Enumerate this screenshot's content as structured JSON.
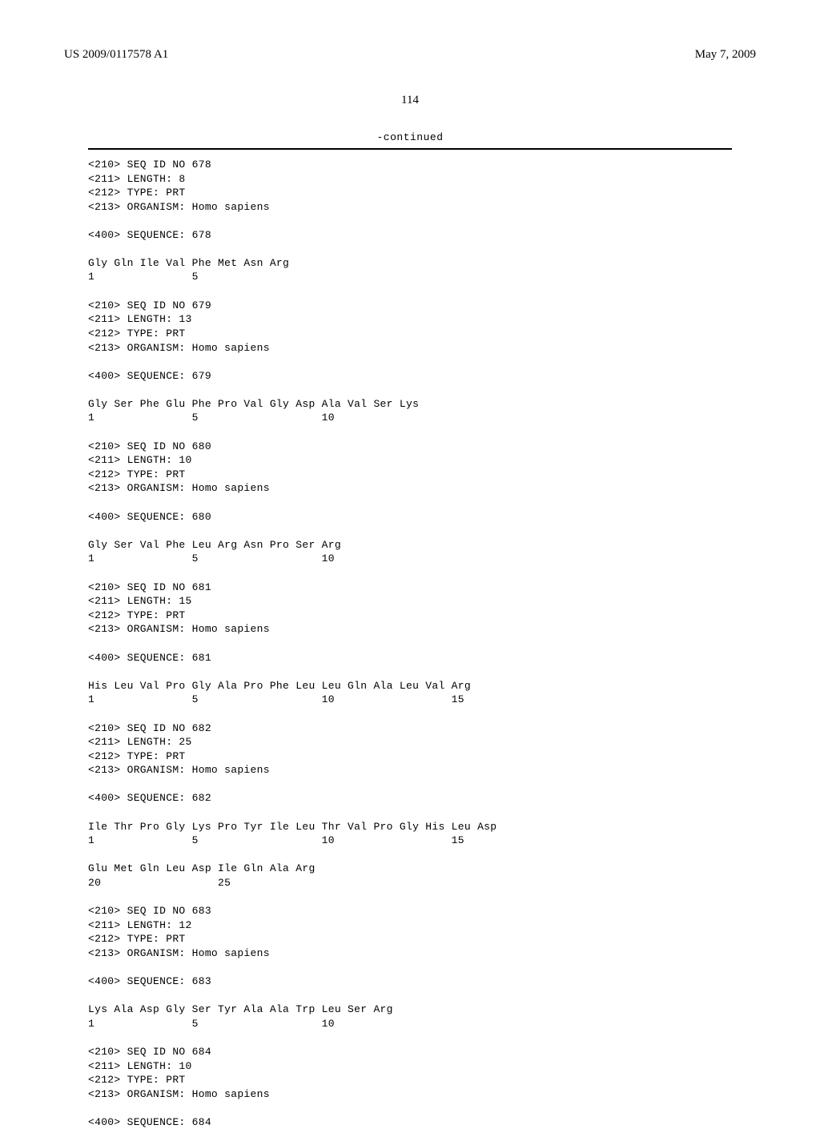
{
  "header": {
    "pub_number": "US 2009/0117578 A1",
    "pub_date": "May 7, 2009"
  },
  "page_number": "114",
  "continued_label": "-continued",
  "sequences": [
    {
      "meta": [
        "<210> SEQ ID NO 678",
        "<211> LENGTH: 8",
        "<212> TYPE: PRT",
        "<213> ORGANISM: Homo sapiens"
      ],
      "seq_header": "<400> SEQUENCE: 678",
      "lines": [
        "Gly Gln Ile Val Phe Met Asn Arg",
        "1               5"
      ]
    },
    {
      "meta": [
        "<210> SEQ ID NO 679",
        "<211> LENGTH: 13",
        "<212> TYPE: PRT",
        "<213> ORGANISM: Homo sapiens"
      ],
      "seq_header": "<400> SEQUENCE: 679",
      "lines": [
        "Gly Ser Phe Glu Phe Pro Val Gly Asp Ala Val Ser Lys",
        "1               5                   10"
      ]
    },
    {
      "meta": [
        "<210> SEQ ID NO 680",
        "<211> LENGTH: 10",
        "<212> TYPE: PRT",
        "<213> ORGANISM: Homo sapiens"
      ],
      "seq_header": "<400> SEQUENCE: 680",
      "lines": [
        "Gly Ser Val Phe Leu Arg Asn Pro Ser Arg",
        "1               5                   10"
      ]
    },
    {
      "meta": [
        "<210> SEQ ID NO 681",
        "<211> LENGTH: 15",
        "<212> TYPE: PRT",
        "<213> ORGANISM: Homo sapiens"
      ],
      "seq_header": "<400> SEQUENCE: 681",
      "lines": [
        "His Leu Val Pro Gly Ala Pro Phe Leu Leu Gln Ala Leu Val Arg",
        "1               5                   10                  15"
      ]
    },
    {
      "meta": [
        "<210> SEQ ID NO 682",
        "<211> LENGTH: 25",
        "<212> TYPE: PRT",
        "<213> ORGANISM: Homo sapiens"
      ],
      "seq_header": "<400> SEQUENCE: 682",
      "lines": [
        "Ile Thr Pro Gly Lys Pro Tyr Ile Leu Thr Val Pro Gly His Leu Asp",
        "1               5                   10                  15",
        "",
        "Glu Met Gln Leu Asp Ile Gln Ala Arg",
        "20                  25"
      ]
    },
    {
      "meta": [
        "<210> SEQ ID NO 683",
        "<211> LENGTH: 12",
        "<212> TYPE: PRT",
        "<213> ORGANISM: Homo sapiens"
      ],
      "seq_header": "<400> SEQUENCE: 683",
      "lines": [
        "Lys Ala Asp Gly Ser Tyr Ala Ala Trp Leu Ser Arg",
        "1               5                   10"
      ]
    },
    {
      "meta": [
        "<210> SEQ ID NO 684",
        "<211> LENGTH: 10",
        "<212> TYPE: PRT",
        "<213> ORGANISM: Homo sapiens"
      ],
      "seq_header": "<400> SEQUENCE: 684",
      "lines": []
    }
  ]
}
